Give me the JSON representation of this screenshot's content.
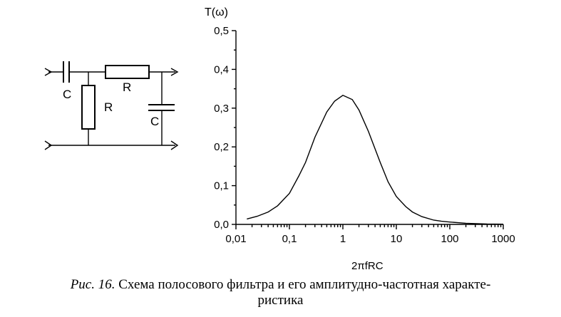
{
  "circuit": {
    "capacitor_1_label": "C",
    "resistor_series_label": "R",
    "resistor_shunt_label": "R",
    "capacitor_2_label": "C"
  },
  "chart_data": {
    "type": "line",
    "title": "",
    "ylabel": "T(ω)",
    "xlabel": "2πfRC",
    "xscale": "log",
    "xlim": [
      0.01,
      1000
    ],
    "ylim": [
      0.0,
      0.5
    ],
    "x_ticks": [
      "0,01",
      "0,1",
      "1",
      "10",
      "100",
      "1000"
    ],
    "y_ticks": [
      "0,0",
      "0,1",
      "0,2",
      "0,3",
      "0,4",
      "0,5"
    ],
    "series": [
      {
        "name": "T(ω)",
        "x": [
          0.016,
          0.025,
          0.04,
          0.06,
          0.1,
          0.15,
          0.2,
          0.3,
          0.5,
          0.7,
          1.0,
          1.5,
          2,
          3,
          5,
          7,
          10,
          15,
          20,
          30,
          50,
          70,
          100,
          200,
          500,
          1000
        ],
        "values": [
          0.014,
          0.021,
          0.032,
          0.048,
          0.08,
          0.125,
          0.16,
          0.225,
          0.29,
          0.318,
          0.333,
          0.322,
          0.295,
          0.24,
          0.16,
          0.11,
          0.072,
          0.046,
          0.032,
          0.02,
          0.011,
          0.008,
          0.006,
          0.003,
          0.001,
          0.0005
        ]
      }
    ]
  },
  "caption": {
    "label": "Рис. 16.",
    "text_line1": " Схема полосового фильтра и его амплитудно-частотная характе-",
    "text_line2": "ристика"
  }
}
